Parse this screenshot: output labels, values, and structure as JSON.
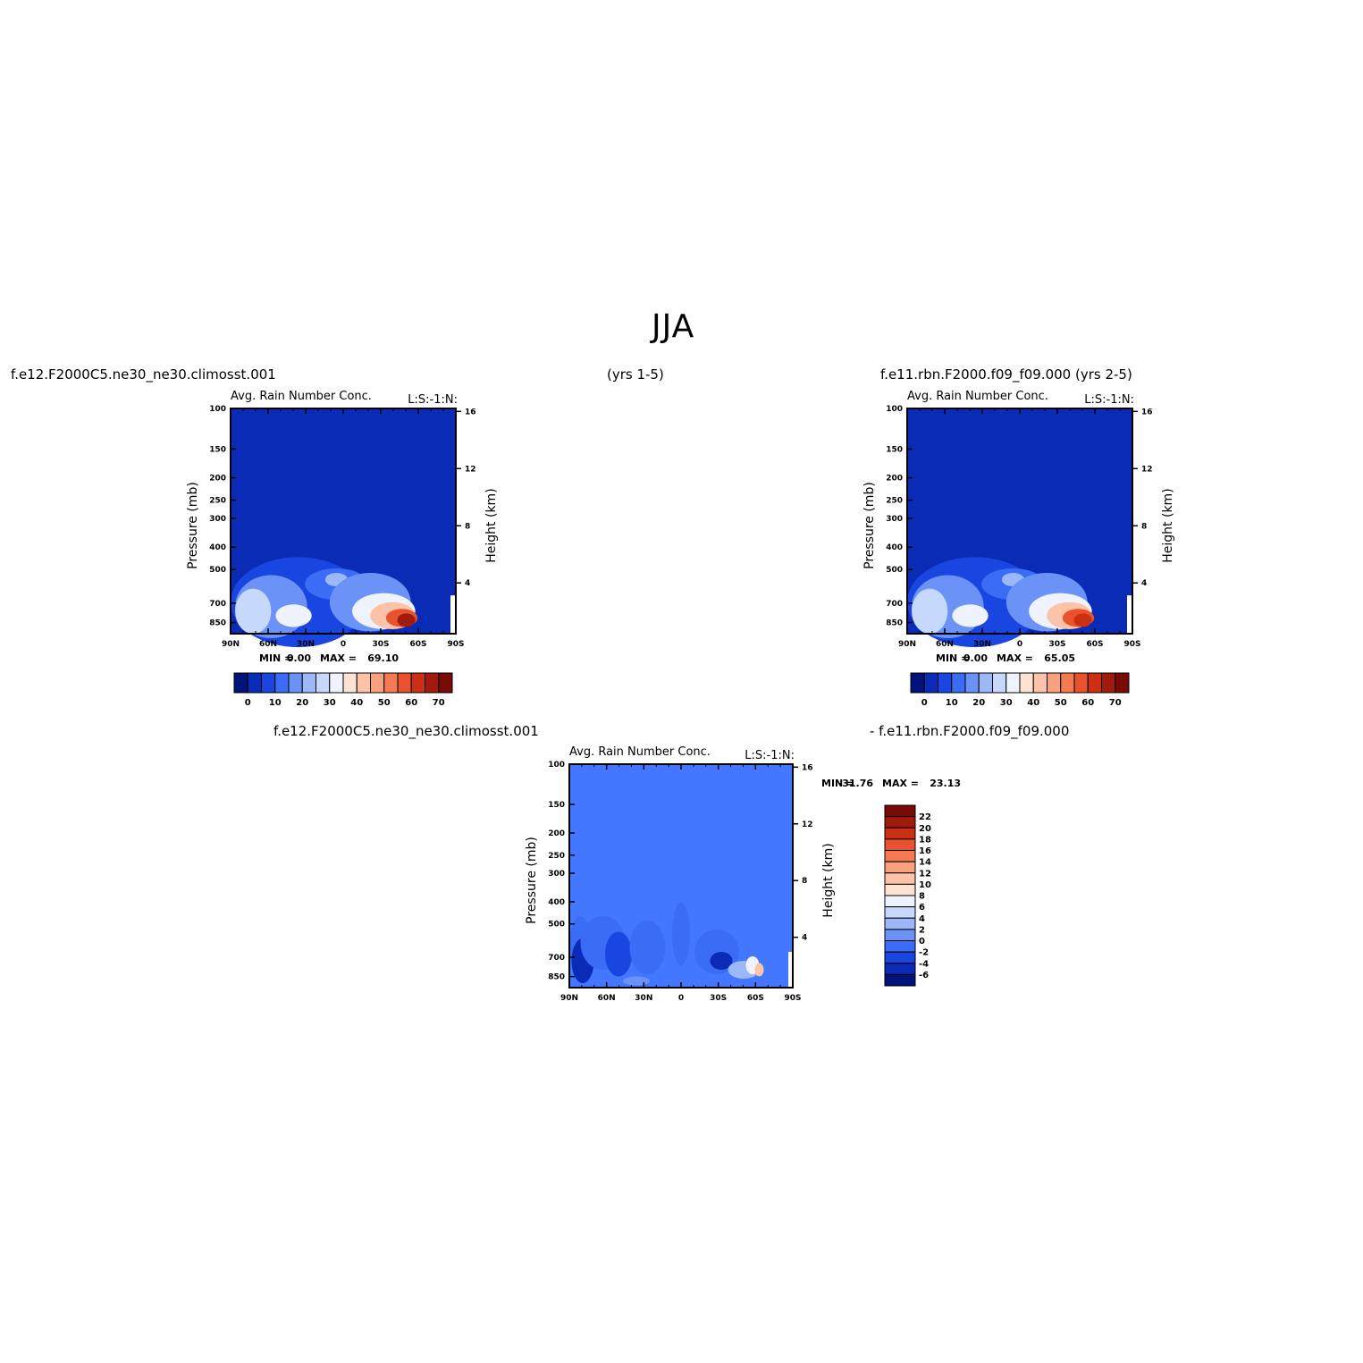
{
  "page": {
    "title": "JJA",
    "header_left_case": "f.e12.F2000C5.ne30_ne30.climosst.001",
    "header_left_years": "(yrs 1-5)",
    "header_right_case": "f.e11.rbn.F2000.f09_f09.000 (yrs 2-5)",
    "diff_left_case": "f.e12.F2000C5.ne30_ne30.climosst.001",
    "diff_right_case": "- f.e11.rbn.F2000.f09_f09.000"
  },
  "colors": {
    "background_field": "#0a2bb5",
    "diff_background_field": "#4477ff"
  },
  "chart_data": [
    {
      "id": "panel-left",
      "type": "heatmap",
      "subtitle": "Avg. Rain Number Conc.",
      "level_tag": "L:S:-1:N:",
      "xlabel": "",
      "ylabel": "Pressure (mb)",
      "ylabel_right": "Height (km)",
      "x_ticks": [
        "90N",
        "60N",
        "30N",
        "0",
        "30S",
        "60S",
        "90S"
      ],
      "y_ticks": [
        "100",
        "150",
        "200",
        "250",
        "300",
        "400",
        "500",
        "700",
        "850"
      ],
      "y_right_ticks": [
        "16",
        "12",
        "8",
        "4"
      ],
      "min_label": "MIN =",
      "min_value": "0.00",
      "max_label": "MAX =",
      "max_value": "69.10",
      "colorbar_ticks": [
        "0",
        "10",
        "20",
        "30",
        "40",
        "50",
        "60",
        "70"
      ],
      "colorbar_colors": [
        "#00137a",
        "#0a2bb5",
        "#1946e0",
        "#3a6cf5",
        "#6b93f7",
        "#9cb8f9",
        "#c6d8fb",
        "#eef3fe",
        "#fde3d3",
        "#fcc3a8",
        "#f9a07c",
        "#f47a52",
        "#e8522c",
        "#cc3014",
        "#a01b0b",
        "#7a0a05"
      ]
    },
    {
      "id": "panel-right",
      "type": "heatmap",
      "subtitle": "Avg. Rain Number Conc.",
      "level_tag": "L:S:-1:N:",
      "xlabel": "",
      "ylabel": "Pressure (mb)",
      "ylabel_right": "Height (km)",
      "x_ticks": [
        "90N",
        "60N",
        "30N",
        "0",
        "30S",
        "60S",
        "90S"
      ],
      "y_ticks": [
        "100",
        "150",
        "200",
        "250",
        "300",
        "400",
        "500",
        "700",
        "850"
      ],
      "y_right_ticks": [
        "16",
        "12",
        "8",
        "4"
      ],
      "min_label": "MIN =",
      "min_value": "0.00",
      "max_label": "MAX =",
      "max_value": "65.05",
      "colorbar_ticks": [
        "0",
        "10",
        "20",
        "30",
        "40",
        "50",
        "60",
        "70"
      ],
      "colorbar_colors": [
        "#00137a",
        "#0a2bb5",
        "#1946e0",
        "#3a6cf5",
        "#6b93f7",
        "#9cb8f9",
        "#c6d8fb",
        "#eef3fe",
        "#fde3d3",
        "#fcc3a8",
        "#f9a07c",
        "#f47a52",
        "#e8522c",
        "#cc3014",
        "#a01b0b",
        "#7a0a05"
      ]
    },
    {
      "id": "panel-diff",
      "type": "heatmap",
      "subtitle": "Avg. Rain Number Conc.",
      "level_tag": "L:S:-1:N:",
      "xlabel": "",
      "ylabel": "Pressure (mb)",
      "ylabel_right": "Height (km)",
      "x_ticks": [
        "90N",
        "60N",
        "30N",
        "0",
        "30S",
        "60S",
        "90S"
      ],
      "y_ticks": [
        "100",
        "150",
        "200",
        "250",
        "300",
        "400",
        "500",
        "700",
        "850"
      ],
      "y_right_ticks": [
        "16",
        "12",
        "8",
        "4"
      ],
      "min_label": "MIN =",
      "min_value": "-31.76",
      "max_label": "MAX =",
      "max_value": "23.13",
      "colorbar_ticks": [
        "22",
        "20",
        "18",
        "16",
        "14",
        "12",
        "10",
        "8",
        "6",
        "4",
        "2",
        "0",
        "-2",
        "-4",
        "-6"
      ],
      "colorbar_colors": [
        "#7a0a05",
        "#a01b0b",
        "#cc3014",
        "#e8522c",
        "#f47a52",
        "#f9a07c",
        "#fcc3a8",
        "#fde3d3",
        "#eef3fe",
        "#c6d8fb",
        "#9cb8f9",
        "#6b93f7",
        "#3a6cf5",
        "#1946e0",
        "#0a2bb5",
        "#00137a"
      ]
    }
  ]
}
